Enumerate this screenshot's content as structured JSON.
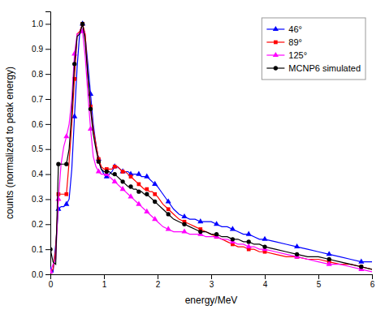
{
  "chart_data": {
    "type": "line",
    "xlabel": "energy/MeV",
    "ylabel": "counts (normalized to peak energy)",
    "xlim": [
      0,
      6
    ],
    "ylim": [
      0,
      1.05
    ],
    "xticks": [
      0,
      1,
      2,
      3,
      4,
      5,
      6
    ],
    "yticks": [
      {
        "value": 0,
        "label": "0.0"
      },
      0.1,
      0.2,
      0.3,
      0.4,
      0.5,
      0.6,
      0.7,
      0.8,
      0.9,
      {
        "value": 1,
        "label": "1.0"
      }
    ],
    "legend": "upper right",
    "x": [
      0.0,
      0.05,
      0.1,
      0.15,
      0.2,
      0.25,
      0.3,
      0.35,
      0.4,
      0.45,
      0.5,
      0.55,
      0.6,
      0.65,
      0.7,
      0.75,
      0.8,
      0.85,
      0.9,
      0.95,
      1.0,
      1.05,
      1.1,
      1.15,
      1.2,
      1.25,
      1.3,
      1.35,
      1.4,
      1.45,
      1.5,
      1.55,
      1.6,
      1.65,
      1.7,
      1.75,
      1.8,
      1.85,
      1.9,
      1.95,
      2.0,
      2.1,
      2.2,
      2.3,
      2.4,
      2.5,
      2.6,
      2.7,
      2.8,
      2.9,
      3.0,
      3.1,
      3.2,
      3.3,
      3.4,
      3.5,
      3.6,
      3.7,
      3.8,
      3.9,
      4.0,
      4.2,
      4.4,
      4.6,
      4.8,
      5.0,
      5.2,
      5.4,
      5.6,
      5.8,
      6.0
    ],
    "series": [
      {
        "name": "46°",
        "color": "blue",
        "marker": "triangle",
        "values": [
          0.02,
          0.01,
          0.12,
          0.26,
          0.27,
          0.27,
          0.28,
          0.3,
          0.42,
          0.63,
          0.83,
          0.97,
          1.0,
          0.95,
          0.84,
          0.72,
          0.6,
          0.52,
          0.46,
          0.42,
          0.4,
          0.39,
          0.4,
          0.41,
          0.43,
          0.43,
          0.42,
          0.41,
          0.41,
          0.41,
          0.4,
          0.4,
          0.4,
          0.4,
          0.39,
          0.39,
          0.39,
          0.38,
          0.37,
          0.36,
          0.35,
          0.32,
          0.29,
          0.26,
          0.24,
          0.23,
          0.22,
          0.22,
          0.21,
          0.21,
          0.21,
          0.2,
          0.19,
          0.19,
          0.18,
          0.17,
          0.16,
          0.16,
          0.15,
          0.14,
          0.14,
          0.13,
          0.12,
          0.11,
          0.1,
          0.09,
          0.08,
          0.07,
          0.06,
          0.05,
          0.05
        ]
      },
      {
        "name": "89°",
        "color": "red",
        "marker": "square",
        "values": [
          0.01,
          0.02,
          0.1,
          0.32,
          0.32,
          0.32,
          0.32,
          0.45,
          0.6,
          0.78,
          0.96,
          0.97,
          1.0,
          0.96,
          0.79,
          0.67,
          0.58,
          0.52,
          0.46,
          0.43,
          0.42,
          0.42,
          0.42,
          0.42,
          0.43,
          0.43,
          0.42,
          0.41,
          0.41,
          0.4,
          0.39,
          0.38,
          0.37,
          0.36,
          0.35,
          0.34,
          0.34,
          0.33,
          0.33,
          0.32,
          0.31,
          0.28,
          0.26,
          0.24,
          0.22,
          0.21,
          0.2,
          0.19,
          0.18,
          0.17,
          0.16,
          0.15,
          0.14,
          0.13,
          0.12,
          0.11,
          0.11,
          0.1,
          0.1,
          0.09,
          0.09,
          0.08,
          0.07,
          0.07,
          0.06,
          0.06,
          0.05,
          0.04,
          0.04,
          0.03,
          0.02
        ]
      },
      {
        "name": "125°",
        "color": "magenta",
        "marker": "triangle",
        "values": [
          0.01,
          0.04,
          0.06,
          0.3,
          0.44,
          0.51,
          0.55,
          0.6,
          0.7,
          0.88,
          0.96,
          0.96,
          0.97,
          0.87,
          0.72,
          0.58,
          0.47,
          0.43,
          0.41,
          0.4,
          0.4,
          0.4,
          0.39,
          0.38,
          0.37,
          0.36,
          0.35,
          0.34,
          0.33,
          0.32,
          0.31,
          0.3,
          0.29,
          0.28,
          0.27,
          0.26,
          0.25,
          0.24,
          0.23,
          0.22,
          0.21,
          0.19,
          0.18,
          0.17,
          0.17,
          0.17,
          0.16,
          0.16,
          0.16,
          0.15,
          0.15,
          0.15,
          0.14,
          0.14,
          0.13,
          0.12,
          0.12,
          0.11,
          0.11,
          0.1,
          0.1,
          0.09,
          0.08,
          0.07,
          0.06,
          0.05,
          0.04,
          0.04,
          0.03,
          0.02,
          0.01
        ]
      },
      {
        "name": "MCNP6 simulated",
        "color": "black",
        "marker": "circle",
        "values": [
          0.1,
          0.05,
          0.04,
          0.44,
          0.44,
          0.44,
          0.44,
          0.5,
          0.65,
          0.84,
          0.95,
          0.96,
          1.0,
          0.93,
          0.79,
          0.66,
          0.56,
          0.5,
          0.45,
          0.42,
          0.41,
          0.41,
          0.41,
          0.4,
          0.4,
          0.39,
          0.38,
          0.37,
          0.36,
          0.35,
          0.35,
          0.34,
          0.34,
          0.33,
          0.33,
          0.32,
          0.32,
          0.31,
          0.3,
          0.29,
          0.28,
          0.26,
          0.24,
          0.22,
          0.21,
          0.2,
          0.19,
          0.18,
          0.17,
          0.17,
          0.16,
          0.16,
          0.15,
          0.15,
          0.14,
          0.14,
          0.13,
          0.13,
          0.12,
          0.12,
          0.11,
          0.1,
          0.09,
          0.08,
          0.07,
          0.07,
          0.06,
          0.05,
          0.04,
          0.03,
          0.02
        ]
      }
    ]
  }
}
